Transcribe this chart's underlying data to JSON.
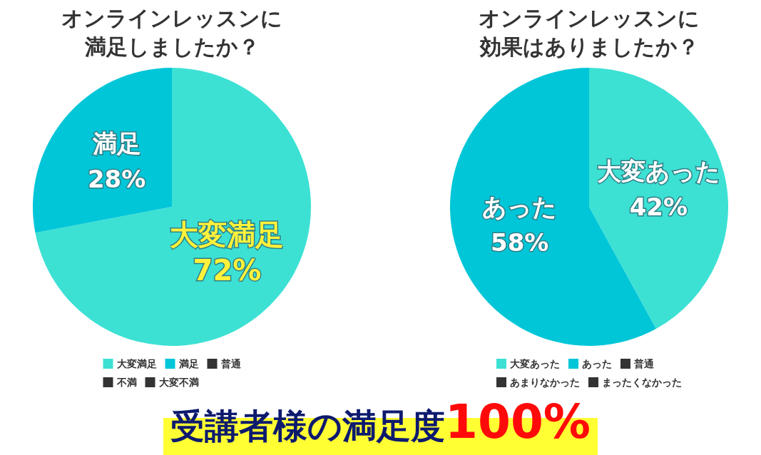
{
  "chart_data": [
    {
      "type": "pie",
      "title": "オンラインレッスンに満足しましたか？",
      "categories": [
        "大変満足",
        "満足",
        "普通",
        "不満",
        "大変不満"
      ],
      "values": [
        72,
        28,
        0,
        0,
        0
      ],
      "colors": [
        "#3ce1d4",
        "#00c6d8",
        "#333333",
        "#333333",
        "#333333"
      ],
      "value_labels": [
        "72%",
        "28%",
        null,
        null,
        null
      ],
      "legend": "bottom",
      "annotations": [
        "受講者様の満足度100%"
      ]
    },
    {
      "type": "pie",
      "title": "オンラインレッスンに効果はありましたか？",
      "categories": [
        "大変あった",
        "あった",
        "普通",
        "あまりなかった",
        "まったくなかった"
      ],
      "values": [
        42,
        58,
        0,
        0,
        0
      ],
      "colors": [
        "#3ce1d4",
        "#00c6d8",
        "#333333",
        "#333333",
        "#333333"
      ],
      "value_labels": [
        "42%",
        "58%",
        null,
        null,
        null
      ],
      "legend": "bottom"
    }
  ]
}
